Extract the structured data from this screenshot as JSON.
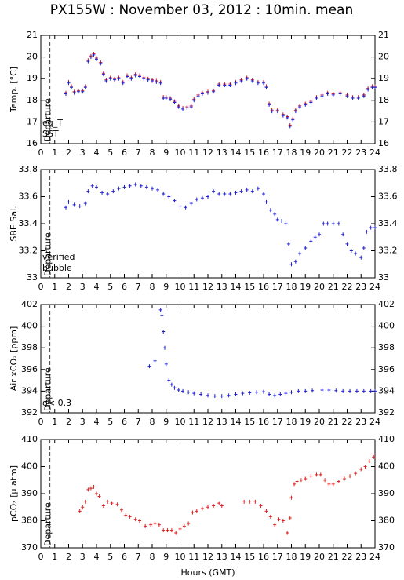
{
  "chart_data": [
    {
      "type": "scatter",
      "title": "PX155W : November 03, 2012 : 10min. mean",
      "ylabel": "Temp. [°C]",
      "xlim": [
        0,
        24
      ],
      "xticks": [
        0,
        1,
        2,
        3,
        4,
        5,
        6,
        7,
        8,
        9,
        10,
        11,
        12,
        13,
        14,
        15,
        16,
        17,
        18,
        19,
        20,
        21,
        22,
        23,
        24
      ],
      "ylim": [
        16,
        21
      ],
      "yticks": [
        16,
        17,
        18,
        19,
        20,
        21
      ],
      "departure": {
        "x": 0.65,
        "label": "Departure"
      },
      "series": [
        {
          "name": "eq_T",
          "color": "#e02020",
          "x": [
            1.8,
            2.0,
            2.2,
            2.4,
            2.7,
            3.0,
            3.2,
            3.4,
            3.6,
            3.8,
            4.0,
            4.3,
            4.5,
            4.7,
            5.0,
            5.3,
            5.6,
            5.9,
            6.2,
            6.5,
            6.8,
            7.1,
            7.4,
            7.7,
            8.0,
            8.3,
            8.6,
            8.8,
            9.0,
            9.3,
            9.6,
            9.9,
            10.2,
            10.5,
            10.8,
            11.0,
            11.3,
            11.6,
            12.0,
            12.4,
            12.8,
            13.2,
            13.6,
            14.0,
            14.4,
            14.8,
            15.2,
            15.6,
            16.0,
            16.2,
            16.4,
            16.6,
            17.0,
            17.4,
            17.7,
            17.9,
            18.1,
            18.3,
            18.6,
            19.0,
            19.4,
            19.8,
            20.2,
            20.6,
            21.0,
            21.5,
            22.0,
            22.4,
            22.8,
            23.2,
            23.5,
            23.8,
            24.0
          ],
          "values": [
            18.35,
            18.85,
            18.65,
            18.4,
            18.45,
            18.45,
            18.65,
            19.85,
            20.05,
            20.15,
            19.95,
            19.75,
            19.25,
            18.95,
            19.05,
            19.0,
            19.05,
            18.85,
            19.15,
            19.05,
            19.2,
            19.15,
            19.05,
            19.0,
            18.95,
            18.9,
            18.85,
            18.15,
            18.15,
            18.1,
            17.95,
            17.75,
            17.65,
            17.7,
            17.75,
            18.05,
            18.25,
            18.35,
            18.4,
            18.45,
            18.75,
            18.75,
            18.75,
            18.85,
            18.95,
            19.05,
            18.95,
            18.85,
            18.85,
            18.65,
            17.85,
            17.55,
            17.55,
            17.35,
            17.25,
            16.85,
            17.15,
            17.55,
            17.75,
            17.85,
            17.95,
            18.15,
            18.25,
            18.35,
            18.3,
            18.35,
            18.25,
            18.15,
            18.15,
            18.25,
            18.55,
            18.65,
            18.65
          ]
        },
        {
          "name": "SST",
          "color": "#2020d0",
          "x": [
            1.8,
            2.0,
            2.2,
            2.4,
            2.7,
            3.0,
            3.2,
            3.4,
            3.6,
            3.8,
            4.0,
            4.3,
            4.5,
            4.7,
            5.0,
            5.3,
            5.6,
            5.9,
            6.2,
            6.5,
            6.8,
            7.1,
            7.4,
            7.7,
            8.0,
            8.3,
            8.6,
            8.8,
            9.0,
            9.3,
            9.6,
            9.9,
            10.2,
            10.5,
            10.8,
            11.0,
            11.3,
            11.6,
            12.0,
            12.4,
            12.8,
            13.2,
            13.6,
            14.0,
            14.4,
            14.8,
            15.2,
            15.6,
            16.0,
            16.2,
            16.4,
            16.6,
            17.0,
            17.4,
            17.7,
            17.9,
            18.1,
            18.3,
            18.6,
            19.0,
            19.4,
            19.8,
            20.2,
            20.6,
            21.0,
            21.5,
            22.0,
            22.4,
            22.8,
            23.2,
            23.5,
            23.8,
            24.0
          ],
          "values": [
            18.3,
            18.8,
            18.6,
            18.35,
            18.4,
            18.4,
            18.6,
            19.8,
            20.0,
            20.1,
            19.9,
            19.7,
            19.2,
            18.9,
            19.0,
            18.95,
            19.0,
            18.8,
            19.1,
            19.0,
            19.15,
            19.1,
            19.0,
            18.95,
            18.9,
            18.85,
            18.8,
            18.1,
            18.1,
            18.05,
            17.9,
            17.7,
            17.6,
            17.65,
            17.7,
            18.0,
            18.2,
            18.3,
            18.35,
            18.4,
            18.7,
            18.7,
            18.7,
            18.8,
            18.9,
            19.0,
            18.9,
            18.8,
            18.8,
            18.6,
            17.8,
            17.5,
            17.5,
            17.3,
            17.2,
            16.8,
            17.1,
            17.5,
            17.7,
            17.8,
            17.9,
            18.1,
            18.2,
            18.3,
            18.25,
            18.3,
            18.2,
            18.1,
            18.1,
            18.2,
            18.5,
            18.6,
            18.6
          ]
        }
      ]
    },
    {
      "type": "scatter",
      "ylabel": "SBE Sal.",
      "xlim": [
        0,
        24
      ],
      "xticks": [
        0,
        1,
        2,
        3,
        4,
        5,
        6,
        7,
        8,
        9,
        10,
        11,
        12,
        13,
        14,
        15,
        16,
        17,
        18,
        19,
        20,
        21,
        22,
        23,
        24
      ],
      "ylim": [
        33,
        33.8
      ],
      "yticks": [
        33,
        33.2,
        33.4,
        33.6,
        33.8
      ],
      "departure": {
        "x": 0.65,
        "label": "Departure"
      },
      "series": [
        {
          "name": "verified",
          "color": "#2020d0",
          "x": [
            1.8,
            2.0,
            2.4,
            2.8,
            3.2,
            3.4,
            3.7,
            4.0,
            4.4,
            4.8,
            5.2,
            5.6,
            6.0,
            6.4,
            6.8,
            7.2,
            7.6,
            8.0,
            8.4,
            8.8,
            9.2,
            9.6,
            10.0,
            10.4,
            10.8,
            11.2,
            11.6,
            12.0,
            12.4,
            12.8,
            13.2,
            13.6,
            14.0,
            14.4,
            14.8,
            15.2,
            15.6,
            16.0,
            16.2,
            16.5,
            16.8,
            17.0,
            17.3,
            17.6,
            17.8,
            18.0,
            18.3,
            18.6,
            19.0,
            19.4,
            19.7,
            20.0,
            20.3,
            20.6,
            21.0,
            21.4,
            21.7,
            22.0,
            22.3,
            22.6,
            23.0,
            23.2,
            23.4,
            23.7,
            24.0
          ],
          "values": [
            33.52,
            33.56,
            33.54,
            33.53,
            33.55,
            33.64,
            33.68,
            33.67,
            33.63,
            33.62,
            33.64,
            33.66,
            33.67,
            33.68,
            33.69,
            33.68,
            33.67,
            33.66,
            33.65,
            33.62,
            33.6,
            33.57,
            33.53,
            33.52,
            33.55,
            33.58,
            33.59,
            33.6,
            33.64,
            33.62,
            33.62,
            33.62,
            33.63,
            33.64,
            33.65,
            33.64,
            33.66,
            33.62,
            33.56,
            33.5,
            33.47,
            33.43,
            33.42,
            33.4,
            33.25,
            33.1,
            33.12,
            33.18,
            33.22,
            33.27,
            33.3,
            33.32,
            33.4,
            33.4,
            33.4,
            33.4,
            33.32,
            33.25,
            33.2,
            33.18,
            33.15,
            33.22,
            33.34,
            33.37,
            33.37
          ]
        },
        {
          "name": "bubble",
          "color": "#d000d0",
          "x": [],
          "values": []
        }
      ]
    },
    {
      "type": "scatter",
      "ylabel": "Air xCO₂ [ppm]",
      "xlim": [
        0,
        24
      ],
      "xticks": [
        0,
        1,
        2,
        3,
        4,
        5,
        6,
        7,
        8,
        9,
        10,
        11,
        12,
        13,
        14,
        15,
        16,
        17,
        18,
        19,
        20,
        21,
        22,
        23,
        24
      ],
      "ylim": [
        392,
        402
      ],
      "yticks": [
        392,
        394,
        396,
        398,
        400,
        402
      ],
      "departure": {
        "x": 0.65,
        "label": "Departure"
      },
      "annotations": [
        {
          "text": "σ< 0.3",
          "color": "#d000d0"
        }
      ],
      "series": [
        {
          "color": "#2020d0",
          "x": [
            7.8,
            8.2,
            8.6,
            8.7,
            8.8,
            8.9,
            9.0,
            9.2,
            9.4,
            9.6,
            9.9,
            10.2,
            10.6,
            11.0,
            11.5,
            12.0,
            12.5,
            13.0,
            13.5,
            14.0,
            14.5,
            15.0,
            15.5,
            16.0,
            16.4,
            16.8,
            17.2,
            17.6,
            18.0,
            18.5,
            19.0,
            19.5,
            20.2,
            20.7,
            21.2,
            21.7,
            22.2,
            22.7,
            23.2,
            23.7,
            24.0
          ],
          "values": [
            396.3,
            396.8,
            401.5,
            401,
            399.5,
            398,
            396.5,
            395,
            394.6,
            394.3,
            394.1,
            394.0,
            393.9,
            393.8,
            393.7,
            393.6,
            393.55,
            393.55,
            393.6,
            393.7,
            393.8,
            393.85,
            393.9,
            393.95,
            393.7,
            393.6,
            393.7,
            393.8,
            393.9,
            394.0,
            394.0,
            394.05,
            394.1,
            394.1,
            394.05,
            394.0,
            394.0,
            394.0,
            394.0,
            394.0,
            394.0
          ]
        }
      ]
    },
    {
      "type": "scatter",
      "ylabel": "pCO₂ [µ atm]",
      "xlabel": "Hours (GMT)",
      "xlim": [
        0,
        24
      ],
      "xticks": [
        0,
        1,
        2,
        3,
        4,
        5,
        6,
        7,
        8,
        9,
        10,
        11,
        12,
        13,
        14,
        15,
        16,
        17,
        18,
        19,
        20,
        21,
        22,
        23,
        24
      ],
      "ylim": [
        370,
        410
      ],
      "yticks": [
        370,
        380,
        390,
        400,
        410
      ],
      "departure": {
        "x": 0.65,
        "label": "Departure"
      },
      "series": [
        {
          "color": "#e02020",
          "x": [
            2.8,
            3.0,
            3.2,
            3.4,
            3.6,
            3.8,
            4.0,
            4.2,
            4.5,
            4.8,
            5.1,
            5.5,
            5.8,
            6.1,
            6.4,
            6.8,
            7.1,
            7.5,
            7.9,
            8.2,
            8.5,
            8.8,
            9.1,
            9.4,
            9.7,
            10.0,
            10.3,
            10.6,
            10.9,
            11.2,
            11.6,
            12.0,
            12.4,
            12.8,
            13.0,
            14.6,
            15.0,
            15.4,
            15.8,
            16.2,
            16.5,
            16.8,
            17.1,
            17.4,
            17.7,
            17.9,
            18.0,
            18.2,
            18.4,
            18.7,
            19.0,
            19.4,
            19.8,
            20.1,
            20.4,
            20.7,
            21.0,
            21.4,
            21.8,
            22.2,
            22.6,
            23.0,
            23.3,
            23.6,
            23.9
          ],
          "values": [
            383.5,
            385,
            387,
            391.5,
            392,
            392.5,
            390,
            389,
            385.5,
            387,
            386.5,
            386,
            384,
            382,
            381.5,
            380.5,
            380,
            378,
            378.5,
            379,
            378.5,
            376.5,
            376.5,
            376.5,
            375.5,
            377,
            378,
            379,
            383,
            383.5,
            384.5,
            385,
            385.5,
            386.5,
            385.5,
            387,
            387,
            387,
            385.5,
            383.5,
            381.5,
            378.5,
            380.5,
            380,
            375.5,
            381,
            388.5,
            393.5,
            394.5,
            395,
            395.5,
            396.5,
            397,
            397,
            395,
            393.5,
            393.5,
            394.5,
            395.5,
            396.5,
            397.5,
            399,
            400,
            402,
            403.5
          ]
        }
      ]
    }
  ]
}
